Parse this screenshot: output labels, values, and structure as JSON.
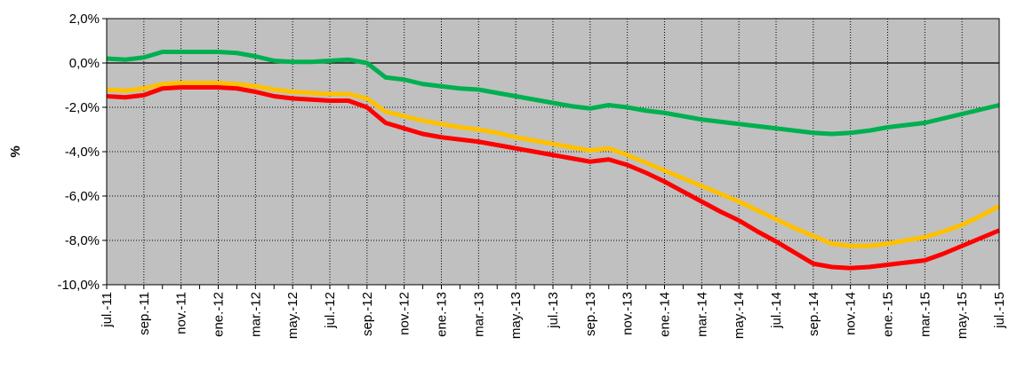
{
  "chart_data": {
    "type": "line",
    "y_label": "%",
    "categories": [
      "jul.-11",
      null,
      "sep.-11",
      null,
      "nov.-11",
      null,
      "ene.-12",
      null,
      "mar.-12",
      null,
      "may.-12",
      null,
      "jul.-12",
      null,
      "sep.-12",
      null,
      "nov.-12",
      null,
      "ene.-13",
      null,
      "mar.-13",
      null,
      "may.-13",
      null,
      "jul.-13",
      null,
      "sep.-13",
      null,
      "nov.-13",
      null,
      "ene.-14",
      null,
      "mar.-14",
      null,
      "may.-14",
      null,
      "jul.-14",
      null,
      "sep.-14",
      null,
      "nov.-14",
      null,
      "ene.-15",
      null,
      "mar.-15",
      null,
      "may.-15",
      null,
      "jul.-15"
    ],
    "series": [
      {
        "color": "#00b050",
        "values": [
          0.2,
          0.15,
          0.25,
          0.5,
          0.5,
          0.5,
          0.5,
          0.45,
          0.3,
          0.1,
          0.05,
          0.05,
          0.1,
          0.15,
          0.0,
          -0.65,
          -0.75,
          -0.95,
          -1.05,
          -1.15,
          -1.2,
          -1.35,
          -1.5,
          -1.65,
          -1.8,
          -1.95,
          -2.05,
          -1.9,
          -2.0,
          -2.15,
          -2.25,
          -2.4,
          -2.55,
          -2.65,
          -2.75,
          -2.85,
          -2.95,
          -3.05,
          -3.15,
          -3.2,
          -3.15,
          -3.05,
          -2.9,
          -2.8,
          -2.7,
          -2.5,
          -2.3,
          -2.1,
          -1.9
        ]
      },
      {
        "color": "#ffc000",
        "values": [
          -1.2,
          -1.25,
          -1.15,
          -0.95,
          -0.9,
          -0.9,
          -0.9,
          -0.95,
          -1.05,
          -1.2,
          -1.3,
          -1.35,
          -1.4,
          -1.4,
          -1.6,
          -2.2,
          -2.4,
          -2.6,
          -2.75,
          -2.9,
          -3.0,
          -3.15,
          -3.35,
          -3.5,
          -3.65,
          -3.8,
          -3.95,
          -3.85,
          -4.15,
          -4.5,
          -4.85,
          -5.2,
          -5.55,
          -5.9,
          -6.25,
          -6.65,
          -7.05,
          -7.45,
          -7.8,
          -8.15,
          -8.25,
          -8.25,
          -8.15,
          -8.0,
          -7.85,
          -7.6,
          -7.3,
          -6.9,
          -6.45
        ]
      },
      {
        "color": "#ff0000",
        "values": [
          -1.5,
          -1.55,
          -1.45,
          -1.15,
          -1.1,
          -1.1,
          -1.1,
          -1.15,
          -1.3,
          -1.5,
          -1.6,
          -1.65,
          -1.7,
          -1.7,
          -2.0,
          -2.7,
          -2.95,
          -3.2,
          -3.35,
          -3.45,
          -3.55,
          -3.7,
          -3.85,
          -4.0,
          -4.15,
          -4.3,
          -4.45,
          -4.35,
          -4.6,
          -4.95,
          -5.35,
          -5.8,
          -6.25,
          -6.7,
          -7.1,
          -7.6,
          -8.05,
          -8.55,
          -9.05,
          -9.2,
          -9.25,
          -9.2,
          -9.1,
          -9.0,
          -8.9,
          -8.6,
          -8.25,
          -7.9,
          -7.55
        ]
      }
    ],
    "ylim": [
      -10,
      2
    ],
    "yticks": [
      {
        "value": -10,
        "label": "-10,0%"
      },
      {
        "value": -8,
        "label": "-8,0%"
      },
      {
        "value": -6,
        "label": "-6,0%"
      },
      {
        "value": -4,
        "label": "-4,0%"
      },
      {
        "value": -2,
        "label": "-2,0%"
      },
      {
        "value": 0,
        "label": "0,0%"
      },
      {
        "value": 2,
        "label": "2,0%"
      }
    ],
    "grid": true,
    "plot_background": "#c0c0c0"
  }
}
